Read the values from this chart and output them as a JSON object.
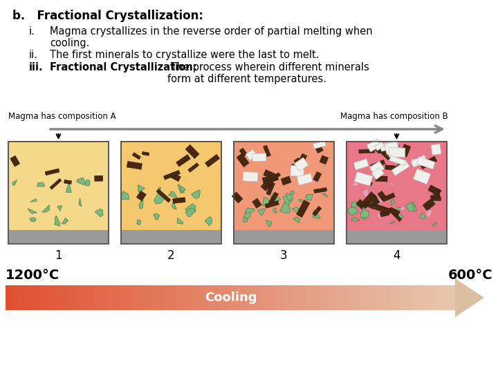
{
  "title_b": "b.   Fractional Crystallization:",
  "item_i_num": "i.",
  "item_i_text": "Magma crystallizes in the reverse order of partial melting when\ncooling.",
  "item_ii_num": "ii.",
  "item_ii_text": "The first minerals to crystallize were the last to melt.",
  "item_iii_num": "iii.",
  "item_iii_bold": "Fractional Crystallization:",
  "item_iii_rest": " The process wherein different minerals\nform at different temperatures.",
  "label_left": "Magma has composition A",
  "label_right": "Magma has composition B",
  "numbers": [
    "1",
    "2",
    "3",
    "4"
  ],
  "temp_left": "1200°C",
  "temp_right": "600°C",
  "cooling_label": "Cooling",
  "bg_colors": [
    "#F5D98A",
    "#F5C870",
    "#F09878",
    "#E87888"
  ],
  "gray_color": "#9A9A9A",
  "green_color": "#7DB87D",
  "green_edge": "#4A7A4A",
  "brown_color": "#4A2810",
  "white_crystal": "#F0F0EC",
  "pink_crystal": "#E8A0B4",
  "pink_edge": "#C07088",
  "cooling_color_left": "#E05030",
  "cooling_color_right": "#E8C8B0",
  "arrow_head_color": "#DBBFA0"
}
